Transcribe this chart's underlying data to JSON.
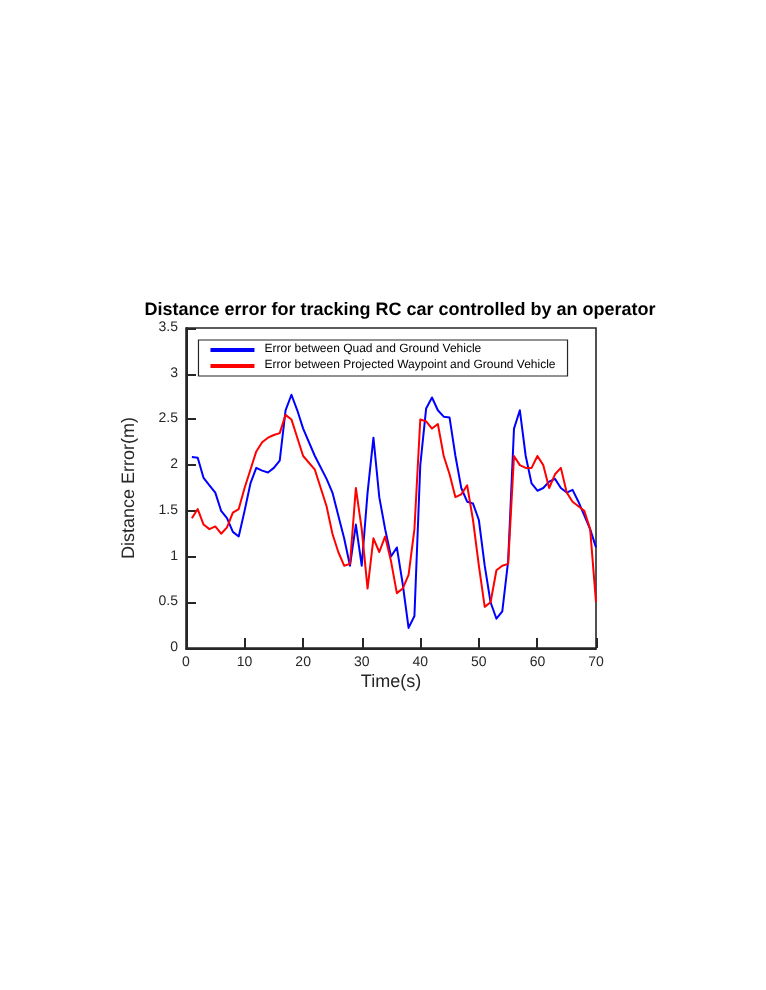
{
  "chart_data": {
    "type": "line",
    "title": "Distance error for tracking RC car controlled by an operator",
    "xlabel": "Time(s)",
    "ylabel": "Distance Error(m)",
    "x": [
      1,
      2,
      3,
      4,
      5,
      6,
      7,
      8,
      9,
      10,
      11,
      12,
      13,
      14,
      15,
      16,
      17,
      18,
      19,
      20,
      22,
      24,
      25,
      26,
      27,
      28,
      29,
      30,
      31,
      32,
      33,
      34,
      35,
      36,
      37,
      38,
      39,
      40,
      41,
      42,
      43,
      44,
      45,
      46,
      47,
      48,
      49,
      50,
      51,
      52,
      53,
      54,
      55,
      56,
      57,
      58,
      59,
      60,
      61,
      62,
      63,
      64,
      65,
      66,
      67,
      68,
      69,
      70
    ],
    "series": [
      {
        "name": "Error between Quad and Ground Vehicle",
        "color": "#0000ff",
        "values": [
          2.09,
          2.08,
          1.86,
          1.78,
          1.7,
          1.5,
          1.42,
          1.27,
          1.22,
          1.5,
          1.8,
          1.97,
          1.94,
          1.92,
          1.97,
          2.05,
          2.6,
          2.77,
          2.6,
          2.4,
          2.1,
          1.85,
          1.7,
          1.45,
          1.2,
          0.9,
          1.35,
          0.9,
          1.7,
          2.3,
          1.65,
          1.3,
          1.0,
          1.1,
          0.7,
          0.22,
          0.35,
          2.0,
          2.62,
          2.74,
          2.6,
          2.53,
          2.52,
          2.1,
          1.75,
          1.6,
          1.58,
          1.4,
          0.9,
          0.5,
          0.32,
          0.4,
          0.95,
          2.4,
          2.6,
          2.1,
          1.8,
          1.72,
          1.75,
          1.82,
          1.85,
          1.75,
          1.7,
          1.73,
          1.6,
          1.45,
          1.3,
          1.1
        ]
      },
      {
        "name": "Error between Projected Waypoint and Ground Vehicle",
        "color": "#ff0000",
        "values": [
          1.42,
          1.52,
          1.35,
          1.3,
          1.33,
          1.25,
          1.32,
          1.48,
          1.52,
          1.75,
          1.95,
          2.15,
          2.25,
          2.3,
          2.33,
          2.35,
          2.55,
          2.5,
          2.3,
          2.1,
          1.95,
          1.55,
          1.25,
          1.05,
          0.9,
          0.92,
          1.75,
          1.3,
          0.65,
          1.2,
          1.05,
          1.22,
          0.95,
          0.6,
          0.65,
          0.8,
          1.3,
          2.5,
          2.48,
          2.4,
          2.45,
          2.1,
          1.9,
          1.65,
          1.68,
          1.78,
          1.4,
          0.9,
          0.45,
          0.5,
          0.85,
          0.9,
          0.92,
          2.1,
          2.0,
          1.97,
          1.97,
          2.1,
          2.0,
          1.75,
          1.9,
          1.97,
          1.7,
          1.6,
          1.55,
          1.5,
          1.3,
          0.5
        ]
      }
    ],
    "xlim": [
      0,
      70
    ],
    "xticks": [
      0,
      10,
      20,
      30,
      40,
      50,
      60,
      70
    ],
    "ylim": [
      0,
      3.5
    ],
    "yticks": [
      0,
      0.5,
      1,
      1.5,
      2,
      2.5,
      3,
      3.5
    ],
    "grid": false,
    "legend": "top",
    "marker": "none",
    "line_style": "solid"
  }
}
